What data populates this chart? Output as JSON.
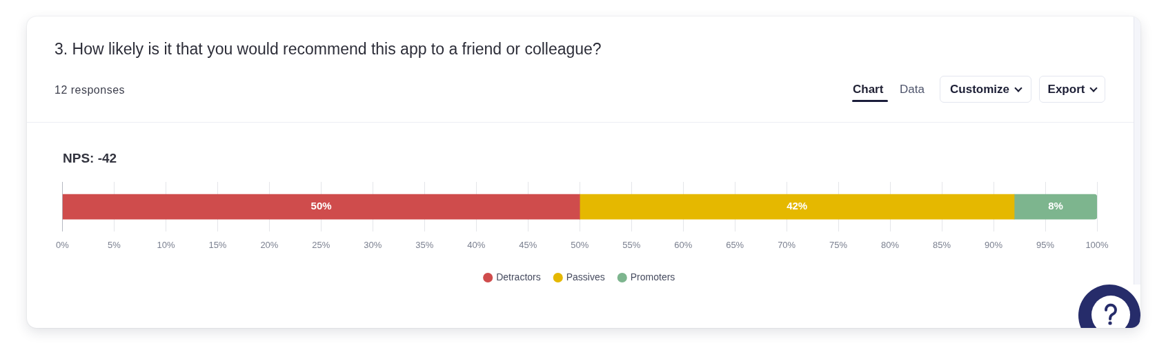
{
  "chart_data": {
    "type": "bar",
    "orientation": "horizontal",
    "stacked": true,
    "title": "3. How likely is it that you would recommend this app to a friend or colleague?",
    "subtitle": "12 responses",
    "annotations": [
      "NPS: -42",
      "Chart",
      "Data",
      "Customize",
      "Export"
    ],
    "categories": [
      null
    ],
    "series": [
      {
        "name": "Detractors",
        "color": "#cf4c4c",
        "values": [
          50
        ],
        "value_labels": [
          "50%"
        ]
      },
      {
        "name": "Passives",
        "color": "#e5b800",
        "values": [
          42
        ],
        "value_labels": [
          "42%"
        ]
      },
      {
        "name": "Promoters",
        "color": "#7db58e",
        "values": [
          8
        ],
        "value_labels": [
          "8%"
        ]
      }
    ],
    "xlim": [
      0,
      100
    ],
    "xticks": [
      {
        "value": 0,
        "label": "0%"
      },
      {
        "value": 5,
        "label": "5%"
      },
      {
        "value": 10,
        "label": "10%"
      },
      {
        "value": 15,
        "label": "15%"
      },
      {
        "value": 20,
        "label": "20%"
      },
      {
        "value": 25,
        "label": "25%"
      },
      {
        "value": 30,
        "label": "30%"
      },
      {
        "value": 35,
        "label": "35%"
      },
      {
        "value": 40,
        "label": "40%"
      },
      {
        "value": 45,
        "label": "45%"
      },
      {
        "value": 50,
        "label": "50%"
      },
      {
        "value": 55,
        "label": "55%"
      },
      {
        "value": 60,
        "label": "60%"
      },
      {
        "value": 65,
        "label": "65%"
      },
      {
        "value": 70,
        "label": "70%"
      },
      {
        "value": 75,
        "label": "75%"
      },
      {
        "value": 80,
        "label": "80%"
      },
      {
        "value": 85,
        "label": "85%"
      },
      {
        "value": 90,
        "label": "90%"
      },
      {
        "value": 95,
        "label": "95%"
      },
      {
        "value": 100,
        "label": "100%"
      }
    ],
    "grid": "x",
    "legend": "bottom"
  }
}
